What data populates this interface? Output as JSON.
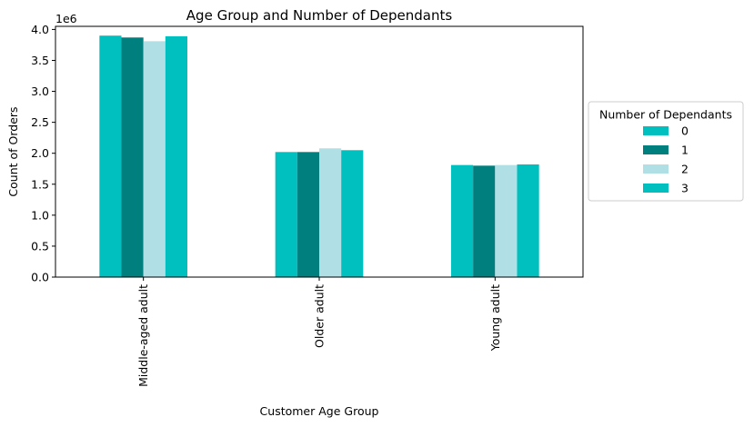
{
  "chart_data": {
    "type": "bar",
    "title": "Age Group and Number of Dependants",
    "xlabel": "Customer Age Group",
    "ylabel": "Count of Orders",
    "y_offset_label": "1e6",
    "y_scale": 1000000,
    "ylim": [
      0,
      4.05
    ],
    "y_ticks": [
      "0.0",
      "0.5",
      "1.0",
      "1.5",
      "2.0",
      "2.5",
      "3.0",
      "3.5",
      "4.0"
    ],
    "categories": [
      "Middle-aged adult",
      "Older adult",
      "Young adult"
    ],
    "grid": false,
    "legend": {
      "title": "Number of Dependants",
      "placement": "outside-right"
    },
    "series": [
      {
        "name": "0",
        "color": "#00bfbf",
        "values": [
          3.9,
          2.02,
          1.81
        ]
      },
      {
        "name": "1",
        "color": "#007f7f",
        "values": [
          3.87,
          2.02,
          1.8
        ]
      },
      {
        "name": "2",
        "color": "#b0e0e6",
        "values": [
          3.81,
          2.08,
          1.81
        ]
      },
      {
        "name": "3",
        "color": "#00bfbf",
        "values": [
          3.89,
          2.05,
          1.82
        ]
      }
    ]
  }
}
